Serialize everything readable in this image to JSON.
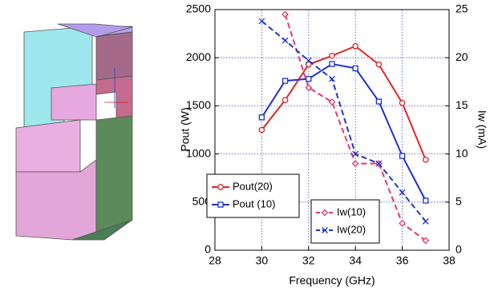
{
  "chart_data": {
    "type": "line",
    "x_label": "Frequency (GHz)",
    "y_label": "Pout (W)",
    "y2_label": "Iw (mA)",
    "x": [
      30,
      31,
      32,
      33,
      34,
      35,
      36,
      37
    ],
    "xlim": [
      28,
      38
    ],
    "xticks": [
      28,
      30,
      32,
      34,
      36,
      38
    ],
    "ylim": [
      0,
      2500
    ],
    "yticks": [
      0,
      500,
      1000,
      1500,
      2000,
      2500
    ],
    "y2lim": [
      0,
      25
    ],
    "y2ticks": [
      0,
      5,
      10,
      15,
      20,
      25
    ],
    "grid": true,
    "series": [
      {
        "name": "Pout(20)",
        "color": "#e02525",
        "marker": "circle",
        "dashed": false,
        "values": [
          1250,
          1560,
          1930,
          2020,
          2120,
          1930,
          1530,
          940
        ]
      },
      {
        "name": "Pout (10)",
        "color": "#1c2fd8",
        "marker": "square",
        "dashed": false,
        "values": [
          1380,
          1760,
          1780,
          1935,
          1890,
          1545,
          980,
          515
        ]
      },
      {
        "name": "Iw(10)",
        "color": "#e8386e",
        "marker": "diamond",
        "dashed": true,
        "axis": "y2",
        "values": [
          null,
          24.5,
          16.9,
          15.4,
          9.0,
          9.0,
          2.8,
          1.0
        ]
      },
      {
        "name": "Iw(20)",
        "color": "#2236c8",
        "marker": "x",
        "dashed": true,
        "axis": "y2",
        "values": [
          23.8,
          21.8,
          19.7,
          17.8,
          10.0,
          9.0,
          6.0,
          3.0
        ]
      }
    ]
  }
}
